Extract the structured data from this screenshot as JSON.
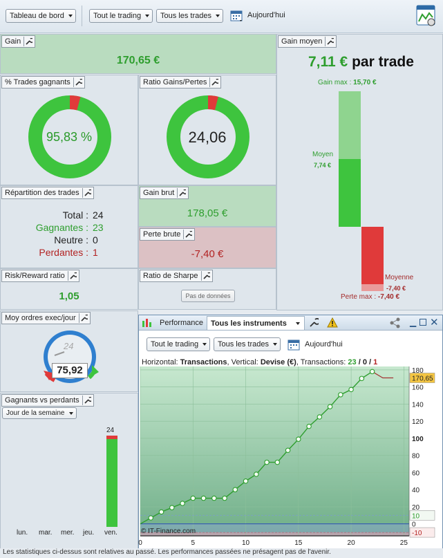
{
  "toolbar": {
    "dashboard_select": "Tableau de bord",
    "trading_select": "Tout le trading",
    "trades_select": "Tous les trades",
    "date_label": "Aujourd'hui"
  },
  "gain": {
    "title": "Gain",
    "value": "170,65 €"
  },
  "trades_gagnants": {
    "title": "% Trades gagnants",
    "value": "95,83 %",
    "win_fraction": 0.9583
  },
  "ratio_gains": {
    "title": "Ratio Gains/Pertes",
    "value": "24,06",
    "win_fraction": 0.96
  },
  "gain_moyen": {
    "title": "Gain moyen",
    "value": "7,11 €",
    "suffix": "par trade",
    "gain_max_label": "Gain max :",
    "gain_max_value": "15,70 €",
    "moyen_label": "Moyen",
    "moyen_value": "7,74 €",
    "moyenne_label": "Moyenne",
    "moyenne_value": "-7,40 €",
    "perte_max_label": "Perte max :",
    "perte_max_value": "-7,40 €"
  },
  "repartition": {
    "title": "Répartition des trades",
    "rows": [
      {
        "label": "Total :",
        "value": "24",
        "color": "#222222"
      },
      {
        "label": "Gagnantes :",
        "value": "23",
        "color": "#2e9e2e"
      },
      {
        "label": "Neutre :",
        "value": "0",
        "color": "#222222"
      },
      {
        "label": "Perdantes :",
        "value": "1",
        "color": "#b22222"
      }
    ]
  },
  "gain_brut": {
    "title": "Gain brut",
    "value": "178,05 €"
  },
  "perte_brute": {
    "title": "Perte brute",
    "value": "-7,40 €"
  },
  "risk_reward": {
    "title": "Risk/Reward ratio",
    "value": "1,05"
  },
  "sharpe": {
    "title": "Ratio de Sharpe",
    "button": "Pas de données"
  },
  "moy_ordres": {
    "title": "Moy ordres exec/jour",
    "gauge_number": "24",
    "value": "75,92"
  },
  "gagnants_vs_perdants": {
    "title": "Gagnants vs perdants",
    "select": "Jour de la semaine",
    "days": [
      "lun.",
      "mar.",
      "mer.",
      "jeu.",
      "ven."
    ],
    "bar_label": "24",
    "values": [
      0,
      0,
      0,
      0,
      24
    ]
  },
  "performance": {
    "tab": "Performance",
    "instruments": "Tous les instruments",
    "trading_select": "Tout le trading",
    "trades_select": "Tous les trades",
    "date_label": "Aujourd'hui",
    "info_prefix_h": "Horizontal:",
    "info_h": "Transactions",
    "info_prefix_v": ", Vertical:",
    "info_v": "Devise (€)",
    "info_prefix_t": ", Transactions:",
    "info_win": "23",
    "info_sep1": "/",
    "info_neutral": "0",
    "info_sep2": "/",
    "info_loss": "1",
    "watermark": "© IT-Finance.com",
    "last_value_label": "170,65",
    "level_pos_label": "10",
    "level_zero_label": "0",
    "level_neg_label": "-10"
  },
  "chart_data": {
    "type": "line",
    "x": [
      0,
      1,
      2,
      3,
      4,
      5,
      6,
      7,
      8,
      9,
      10,
      11,
      12,
      13,
      14,
      15,
      16,
      17,
      18,
      19,
      20,
      21,
      22,
      23,
      24
    ],
    "series": [
      {
        "values": [
          0,
          7,
          14,
          19,
          24,
          30,
          30,
          30,
          30,
          40,
          50,
          58,
          72,
          72,
          86,
          99,
          114,
          125,
          137,
          151,
          157,
          170,
          178,
          170.65,
          170.65
        ]
      }
    ],
    "xlabel": "",
    "ylabel": "",
    "x_ticks": [
      0,
      5,
      10,
      15,
      20,
      25
    ],
    "y_ticks": [
      0,
      20,
      40,
      60,
      80,
      100,
      120,
      140,
      160,
      180
    ],
    "xlim": [
      0,
      25.5
    ],
    "ylim": [
      -14,
      184
    ],
    "line_color": "#2e9e2e",
    "loss_segment_color": "#a33333"
  },
  "footer": "Les statistiques ci-dessus sont relatives au passé. Les performances passées ne présagent pas de l'avenir."
}
